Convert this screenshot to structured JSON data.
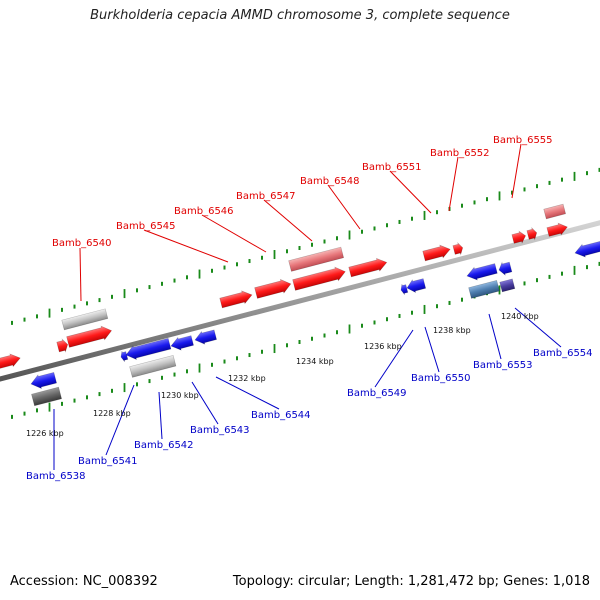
{
  "title": "Burkholderia cepacia AMMD chromosome 3, complete sequence",
  "footer": {
    "accession": "Accession: NC_008392",
    "summary": "Topology: circular; Length: 1,281,472 bp; Genes: 1,018"
  },
  "colors": {
    "forward_gene": "#ff1a1a",
    "forward_pseudo": "#e8787c",
    "reverse_gene": "#1a1aee",
    "reverse_grey": "#b8b8b8",
    "reverse_dark": "#666666",
    "reverse_steel": "#4f7fb0",
    "reverse_purple": "#4a3ea0",
    "axis": "#888888",
    "tick": "#1a8a1a",
    "forward_label": "#e00000",
    "reverse_label": "#0000c8"
  },
  "ticks": [
    "1226 kbp",
    "1228 kbp",
    "1230 kbp",
    "1232 kbp",
    "1234 kbp",
    "1236 kbp",
    "1238 kbp",
    "1240 kbp"
  ],
  "forward_labels": [
    "Bamb_6540",
    "Bamb_6545",
    "Bamb_6546",
    "Bamb_6547",
    "Bamb_6548",
    "Bamb_6551",
    "Bamb_6552",
    "Bamb_6555"
  ],
  "reverse_labels": [
    "Bamb_6538",
    "Bamb_6541",
    "Bamb_6542",
    "Bamb_6543",
    "Bamb_6544",
    "Bamb_6549",
    "Bamb_6550",
    "Bamb_6553",
    "Bamb_6554"
  ]
}
